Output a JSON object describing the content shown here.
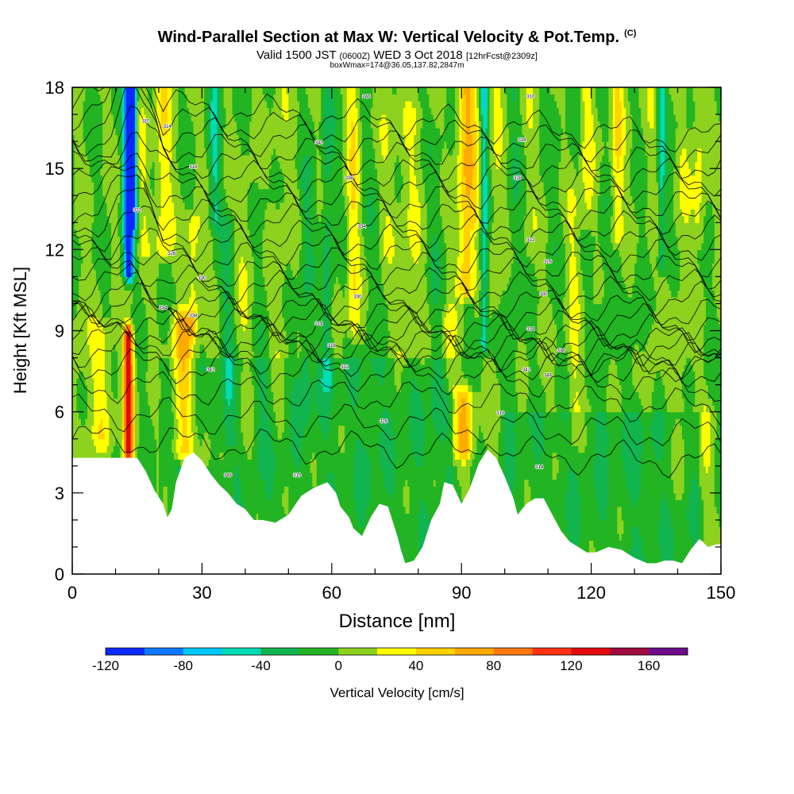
{
  "header": {
    "title": "Wind-Parallel Section at Max W: Vertical Velocity & Pot.Temp.",
    "copyright": "(C)",
    "subtitle_main": "Valid 1500 JST",
    "subtitle_utc": "(0600Z)",
    "subtitle_date": "WED 3 Oct 2018",
    "subtitle_fcst": "[12hrFcst@2309z]",
    "subtitle2": "boxWmax=174@36.05,137.82,2847m"
  },
  "chart_data": {
    "type": "heatmap",
    "xlabel": "Distance [nm]",
    "ylabel": "Height [Kft MSL]",
    "xlim": [
      0,
      150
    ],
    "ylim": [
      0,
      18
    ],
    "x_ticks": [
      "0",
      "30",
      "60",
      "90",
      "120",
      "150"
    ],
    "y_ticks": [
      "0",
      "3",
      "6",
      "9",
      "12",
      "15",
      "18"
    ],
    "colorbar": {
      "label": "Vertical Velocity [cm/s]",
      "range": [
        -120,
        180
      ],
      "step": 20,
      "tick_labels": [
        "-120",
        "-80",
        "-40",
        "0",
        "40",
        "80",
        "120",
        "160"
      ],
      "colors": [
        "#0a28ff",
        "#0f78ff",
        "#00c8ff",
        "#00dcb4",
        "#12b450",
        "#22b422",
        "#8cd21e",
        "#ffff00",
        "#ffd200",
        "#ffaa00",
        "#ff7814",
        "#ff3214",
        "#e10a0a",
        "#a00a3c",
        "#6e0a8c"
      ]
    },
    "terrain": {
      "x": [
        0,
        15,
        17,
        19,
        21,
        22,
        23,
        24,
        26,
        28,
        30,
        32,
        34,
        36,
        38,
        40,
        42,
        44,
        47,
        50,
        53,
        56,
        59,
        61,
        62,
        64,
        65,
        67,
        69,
        71,
        73,
        75,
        76,
        77,
        79,
        81,
        83,
        85,
        86,
        88,
        90,
        92,
        94,
        96,
        98,
        100,
        102,
        103,
        105,
        107,
        109,
        111,
        113,
        115,
        117,
        119,
        121,
        124,
        127,
        130,
        133,
        135,
        137,
        139,
        141,
        143,
        145,
        147,
        149,
        150
      ],
      "height_kft": [
        4.3,
        4.3,
        3.8,
        3.1,
        2.6,
        2.1,
        2.4,
        3.4,
        4.3,
        4.5,
        4.2,
        3.7,
        3.3,
        3.0,
        2.6,
        2.4,
        2.0,
        2.0,
        1.9,
        2.2,
        2.9,
        3.2,
        3.4,
        3.0,
        2.5,
        2.1,
        1.7,
        1.4,
        2.1,
        2.6,
        2.5,
        1.5,
        0.9,
        0.4,
        0.5,
        1.0,
        2.0,
        2.6,
        3.4,
        3.3,
        2.6,
        3.2,
        4.1,
        4.6,
        4.3,
        3.6,
        2.8,
        2.2,
        2.6,
        2.8,
        2.8,
        2.2,
        1.6,
        1.2,
        1.0,
        0.8,
        0.8,
        1.0,
        0.9,
        0.6,
        0.4,
        0.4,
        0.5,
        0.5,
        0.4,
        0.9,
        1.3,
        1.0,
        1.1,
        1.1
      ]
    },
    "theta_contour_labels": [
      "310",
      "314",
      "318",
      "322",
      "326",
      "330",
      "334",
      "338",
      "342",
      "346"
    ]
  }
}
